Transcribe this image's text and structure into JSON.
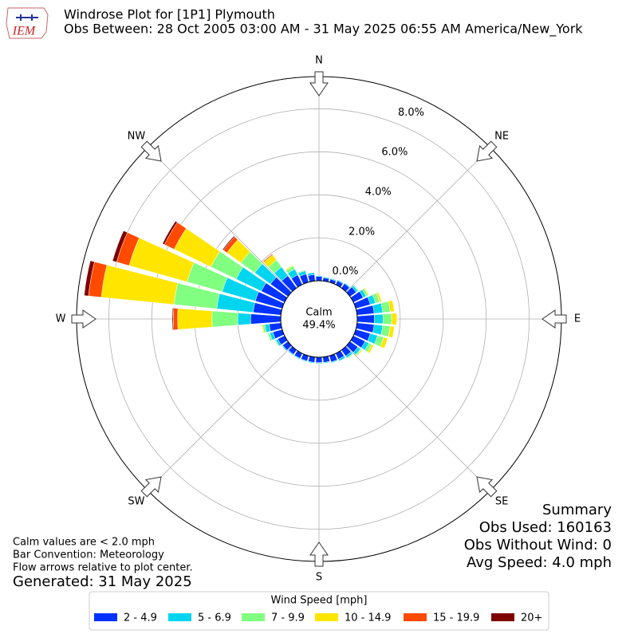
{
  "chart_data": {
    "type": "windrose",
    "logo": "IEM",
    "title": "Windrose Plot for [1P1] Plymouth",
    "subtitle": "Obs Between: 28 Oct 2005 03:00 AM - 31 May 2025 06:55 AM America/New_York",
    "x": [
      0,
      10,
      20,
      30,
      40,
      50,
      60,
      70,
      80,
      90,
      100,
      110,
      120,
      130,
      140,
      150,
      160,
      170,
      180,
      190,
      200,
      210,
      220,
      230,
      240,
      250,
      260,
      270,
      280,
      290,
      300,
      310,
      320,
      330,
      340,
      350
    ],
    "compass": [
      {
        "angle": 0,
        "label": "N"
      },
      {
        "angle": 45,
        "label": "NE"
      },
      {
        "angle": 90,
        "label": "E"
      },
      {
        "angle": 135,
        "label": "SE"
      },
      {
        "angle": 180,
        "label": "S"
      },
      {
        "angle": 225,
        "label": "SW"
      },
      {
        "angle": 270,
        "label": "W"
      },
      {
        "angle": 315,
        "label": "NW"
      }
    ],
    "rlim": [
      0,
      9.5
    ],
    "rticks": [
      {
        "value": 0,
        "label": "0.0%"
      },
      {
        "value": 2,
        "label": "2.0%"
      },
      {
        "value": 4,
        "label": "4.0%"
      },
      {
        "value": 6,
        "label": "6.0%"
      },
      {
        "value": 8,
        "label": "8.0%"
      }
    ],
    "calm": {
      "label": "Calm",
      "value": 49.4,
      "value_label": "49.4%"
    },
    "legend_title": "Wind Speed [mph]",
    "series": [
      {
        "name": "2 - 4.9",
        "color": "#0033ff",
        "values": [
          0.2,
          0.15,
          0.15,
          0.2,
          0.25,
          0.35,
          0.5,
          0.7,
          0.8,
          0.8,
          0.8,
          0.7,
          0.6,
          0.45,
          0.35,
          0.3,
          0.3,
          0.25,
          0.25,
          0.25,
          0.25,
          0.25,
          0.25,
          0.3,
          0.35,
          0.45,
          0.55,
          1.4,
          1.3,
          1.3,
          1.2,
          1.0,
          0.7,
          0.5,
          0.4,
          0.3
        ]
      },
      {
        "name": "5 - 6.9",
        "color": "#00d5f0",
        "values": [
          0.05,
          0.05,
          0.05,
          0.05,
          0.05,
          0.1,
          0.15,
          0.25,
          0.4,
          0.4,
          0.4,
          0.35,
          0.2,
          0.15,
          0.1,
          0.1,
          0.05,
          0.05,
          0.05,
          0.05,
          0.05,
          0.05,
          0.05,
          0.05,
          0.1,
          0.15,
          0.2,
          0.6,
          1.7,
          1.6,
          1.3,
          0.9,
          0.5,
          0.3,
          0.15,
          0.1
        ]
      },
      {
        "name": "7 - 9.9",
        "color": "#80ff80",
        "values": [
          0,
          0,
          0,
          0,
          0,
          0.05,
          0.1,
          0.2,
          0.35,
          0.4,
          0.35,
          0.3,
          0.15,
          0.05,
          0.05,
          0,
          0,
          0,
          0,
          0,
          0,
          0,
          0,
          0,
          0.05,
          0.1,
          0.1,
          1.2,
          2.0,
          1.7,
          1.3,
          0.8,
          0.4,
          0.15,
          0.05,
          0
        ]
      },
      {
        "name": "10 - 14.9",
        "color": "#ffe500",
        "values": [
          0,
          0,
          0,
          0,
          0,
          0,
          0.05,
          0.1,
          0.2,
          0.25,
          0.2,
          0.2,
          0.1,
          0.05,
          0,
          0,
          0,
          0,
          0,
          0,
          0,
          0,
          0,
          0,
          0,
          0,
          0.05,
          1.6,
          3.4,
          2.8,
          1.9,
          0.8,
          0.3,
          0.05,
          0,
          0
        ]
      },
      {
        "name": "15 - 19.9",
        "color": "#ff4a00",
        "values": [
          0,
          0,
          0,
          0,
          0,
          0,
          0,
          0,
          0,
          0,
          0,
          0,
          0,
          0,
          0,
          0,
          0,
          0,
          0,
          0,
          0,
          0,
          0,
          0,
          0,
          0,
          0,
          0.2,
          0.6,
          0.6,
          0.5,
          0.2,
          0.05,
          0,
          0,
          0
        ]
      },
      {
        "name": "20+",
        "color": "#7f0000",
        "values": [
          0,
          0,
          0,
          0,
          0,
          0,
          0,
          0,
          0,
          0,
          0,
          0,
          0,
          0,
          0,
          0,
          0,
          0,
          0,
          0,
          0,
          0,
          0,
          0,
          0,
          0,
          0,
          0.05,
          0.2,
          0.2,
          0.1,
          0.05,
          0,
          0,
          0,
          0
        ]
      }
    ],
    "summary": [
      "Summary",
      "Obs Used: 160163",
      "Obs Without Wind: 0",
      "Avg Speed: 4.0 mph"
    ],
    "notes": [
      "Calm values are < 2.0 mph",
      "Bar Convention: Meteorology",
      "Flow arrows relative to plot center."
    ],
    "generated": "Generated: 31 May 2025"
  }
}
